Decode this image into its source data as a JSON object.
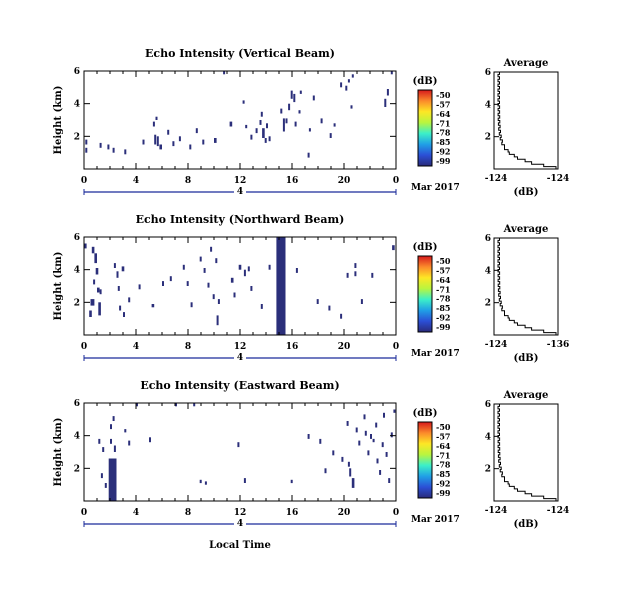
{
  "figure": {
    "xlabel_bottom": "Local Time",
    "date_label": "Mar 2017",
    "colorbar_unit": "(dB)",
    "colorbar_ticks": [
      "-50",
      "-57",
      "-64",
      "-71",
      "-78",
      "-85",
      "-92",
      "-99"
    ],
    "colorbar_colors": [
      "#d7191c",
      "#fb8a2b",
      "#fde725",
      "#b9f53f",
      "#3cf0c8",
      "#20a0e6",
      "#2b4fd6",
      "#2a2a7a"
    ]
  },
  "chart_data": [
    {
      "type": "heatmap",
      "title": "Echo Intensity (Vertical Beam)",
      "ylabel": "Height (km)",
      "xlim": [
        0,
        24
      ],
      "ylim": [
        0,
        6
      ],
      "x_ticks": [
        "0",
        "4",
        "8",
        "12",
        "16",
        "20",
        "0"
      ],
      "y_ticks": [
        "2",
        "4",
        "6"
      ],
      "day_marker": "4",
      "cell_color": "#2b2f7a",
      "cells": [
        [
          0.1,
          1.0,
          0.1,
          0.3
        ],
        [
          0.1,
          1.5,
          0.1,
          0.3
        ],
        [
          1.2,
          1.3,
          0.1,
          0.3
        ],
        [
          1.8,
          1.2,
          0.1,
          0.3
        ],
        [
          2.2,
          1.0,
          0.1,
          0.3
        ],
        [
          3.1,
          0.9,
          0.1,
          0.3
        ],
        [
          4.5,
          1.5,
          0.1,
          0.3
        ],
        [
          5.3,
          2.6,
          0.1,
          0.3
        ],
        [
          5.4,
          1.5,
          0.1,
          0.6
        ],
        [
          5.6,
          1.4,
          0.1,
          0.6
        ],
        [
          5.8,
          1.2,
          0.2,
          0.3
        ],
        [
          5.5,
          3.0,
          0.1,
          0.2
        ],
        [
          6.4,
          2.1,
          0.1,
          0.3
        ],
        [
          6.8,
          1.4,
          0.1,
          0.3
        ],
        [
          7.3,
          1.7,
          0.1,
          0.3
        ],
        [
          8.1,
          1.2,
          0.1,
          0.3
        ],
        [
          8.6,
          2.2,
          0.1,
          0.3
        ],
        [
          9.1,
          1.5,
          0.1,
          0.3
        ],
        [
          10.0,
          1.6,
          0.2,
          0.3
        ],
        [
          10.7,
          5.8,
          0.1,
          0.2
        ],
        [
          11.2,
          2.6,
          0.2,
          0.3
        ],
        [
          12.2,
          4.0,
          0.1,
          0.2
        ],
        [
          12.4,
          2.5,
          0.1,
          0.2
        ],
        [
          12.8,
          1.8,
          0.1,
          0.3
        ],
        [
          13.2,
          2.2,
          0.1,
          0.3
        ],
        [
          13.5,
          2.7,
          0.1,
          0.3
        ],
        [
          13.7,
          1.9,
          0.2,
          0.6
        ],
        [
          13.6,
          3.2,
          0.1,
          0.3
        ],
        [
          13.9,
          1.6,
          0.1,
          0.3
        ],
        [
          14.0,
          2.5,
          0.1,
          0.3
        ],
        [
          14.2,
          1.7,
          0.1,
          0.3
        ],
        [
          15.1,
          3.4,
          0.1,
          0.3
        ],
        [
          15.3,
          2.3,
          0.1,
          0.8
        ],
        [
          15.5,
          2.8,
          0.1,
          0.3
        ],
        [
          15.7,
          3.6,
          0.1,
          0.4
        ],
        [
          15.9,
          4.3,
          0.1,
          0.5
        ],
        [
          16.1,
          4.1,
          0.1,
          0.5
        ],
        [
          16.2,
          2.6,
          0.1,
          0.3
        ],
        [
          16.5,
          3.4,
          0.1,
          0.2
        ],
        [
          16.6,
          4.6,
          0.1,
          0.2
        ],
        [
          17.3,
          2.3,
          0.1,
          0.2
        ],
        [
          17.6,
          4.2,
          0.1,
          0.3
        ],
        [
          18.2,
          2.8,
          0.1,
          0.3
        ],
        [
          18.9,
          1.9,
          0.1,
          0.3
        ],
        [
          19.2,
          2.6,
          0.1,
          0.2
        ],
        [
          19.7,
          5.0,
          0.1,
          0.3
        ],
        [
          20.1,
          4.8,
          0.1,
          0.3
        ],
        [
          20.3,
          5.3,
          0.1,
          0.2
        ],
        [
          20.6,
          5.6,
          0.1,
          0.2
        ],
        [
          20.5,
          3.7,
          0.1,
          0.2
        ],
        [
          23.1,
          3.8,
          0.1,
          0.5
        ],
        [
          23.3,
          4.5,
          0.1,
          0.4
        ],
        [
          23.6,
          5.8,
          0.1,
          0.2
        ],
        [
          17.2,
          0.7,
          0.1,
          0.3
        ]
      ],
      "profile": {
        "title": "Average",
        "xlabel": "(dB)",
        "x_ticks": [
          "-124",
          "-124"
        ],
        "y_ticks": [
          "2",
          "4",
          "6"
        ]
      }
    },
    {
      "type": "heatmap",
      "title": "Echo Intensity (Northward Beam)",
      "ylabel": "Height (km)",
      "xlim": [
        0,
        24
      ],
      "ylim": [
        0,
        6
      ],
      "x_ticks": [
        "0",
        "4",
        "8",
        "12",
        "16",
        "20",
        "0"
      ],
      "y_ticks": [
        "2",
        "4",
        "6"
      ],
      "day_marker": "4",
      "cell_color": "#2b2f7a",
      "cells": [
        [
          0.0,
          5.3,
          0.2,
          0.3
        ],
        [
          0.6,
          5.0,
          0.2,
          0.4
        ],
        [
          0.8,
          4.4,
          0.2,
          0.6
        ],
        [
          0.9,
          3.7,
          0.2,
          0.4
        ],
        [
          0.7,
          3.1,
          0.1,
          0.3
        ],
        [
          1.0,
          2.6,
          0.2,
          0.3
        ],
        [
          0.5,
          1.8,
          0.3,
          0.4
        ],
        [
          0.4,
          1.1,
          0.2,
          0.4
        ],
        [
          1.1,
          1.2,
          0.2,
          0.8
        ],
        [
          1.2,
          2.5,
          0.1,
          0.3
        ],
        [
          2.3,
          4.1,
          0.1,
          0.3
        ],
        [
          2.5,
          3.5,
          0.1,
          0.4
        ],
        [
          2.6,
          2.7,
          0.1,
          0.3
        ],
        [
          2.9,
          3.9,
          0.2,
          0.3
        ],
        [
          2.7,
          1.5,
          0.1,
          0.3
        ],
        [
          3.0,
          1.1,
          0.1,
          0.3
        ],
        [
          3.4,
          2.0,
          0.1,
          0.3
        ],
        [
          4.2,
          2.8,
          0.1,
          0.3
        ],
        [
          5.2,
          1.7,
          0.2,
          0.2
        ],
        [
          6.0,
          3.0,
          0.1,
          0.3
        ],
        [
          6.6,
          3.3,
          0.1,
          0.3
        ],
        [
          7.6,
          4.0,
          0.1,
          0.3
        ],
        [
          7.9,
          3.0,
          0.1,
          0.3
        ],
        [
          8.2,
          1.7,
          0.1,
          0.3
        ],
        [
          8.9,
          4.5,
          0.1,
          0.3
        ],
        [
          9.2,
          3.8,
          0.1,
          0.3
        ],
        [
          9.5,
          2.9,
          0.1,
          0.3
        ],
        [
          9.7,
          5.1,
          0.1,
          0.3
        ],
        [
          9.9,
          2.2,
          0.1,
          0.3
        ],
        [
          10.1,
          4.4,
          0.1,
          0.3
        ],
        [
          10.3,
          1.9,
          0.1,
          0.3
        ],
        [
          10.2,
          0.6,
          0.1,
          0.6
        ],
        [
          11.3,
          3.2,
          0.2,
          0.3
        ],
        [
          11.5,
          2.3,
          0.1,
          0.3
        ],
        [
          11.9,
          4.0,
          0.2,
          0.3
        ],
        [
          12.3,
          3.6,
          0.1,
          0.4
        ],
        [
          12.6,
          3.9,
          0.1,
          0.3
        ],
        [
          12.8,
          2.7,
          0.1,
          0.3
        ],
        [
          13.6,
          1.6,
          0.1,
          0.3
        ],
        [
          14.2,
          4.0,
          0.1,
          0.3
        ],
        [
          15.0,
          3.0,
          0.1,
          0.3
        ],
        [
          14.8,
          0.0,
          0.7,
          6.0
        ],
        [
          16.3,
          3.8,
          0.1,
          0.3
        ],
        [
          17.9,
          1.9,
          0.1,
          0.3
        ],
        [
          18.8,
          1.5,
          0.1,
          0.3
        ],
        [
          19.7,
          1.0,
          0.1,
          0.3
        ],
        [
          20.2,
          3.5,
          0.1,
          0.3
        ],
        [
          20.8,
          3.6,
          0.1,
          0.3
        ],
        [
          21.3,
          1.9,
          0.1,
          0.3
        ],
        [
          20.8,
          4.1,
          0.1,
          0.3
        ],
        [
          22.1,
          3.5,
          0.1,
          0.3
        ],
        [
          23.7,
          5.2,
          0.2,
          0.3
        ]
      ],
      "profile": {
        "title": "Average",
        "xlabel": "(dB)",
        "x_ticks": [
          "-124",
          "-136"
        ],
        "y_ticks": [
          "2",
          "4",
          "6"
        ]
      }
    },
    {
      "type": "heatmap",
      "title": "Echo Intensity (Eastward Beam)",
      "ylabel": "Height (km)",
      "xlim": [
        0,
        24
      ],
      "ylim": [
        0,
        6
      ],
      "x_ticks": [
        "0",
        "4",
        "8",
        "12",
        "16",
        "20",
        "0"
      ],
      "y_ticks": [
        "2",
        "4",
        "6"
      ],
      "day_marker": "4",
      "cell_color": "#2b2f7a",
      "cells": [
        [
          1.1,
          3.5,
          0.1,
          0.3
        ],
        [
          1.4,
          3.0,
          0.1,
          0.3
        ],
        [
          1.3,
          1.4,
          0.1,
          0.3
        ],
        [
          1.6,
          0.8,
          0.1,
          0.3
        ],
        [
          2.0,
          4.4,
          0.1,
          0.3
        ],
        [
          2.2,
          4.9,
          0.1,
          0.3
        ],
        [
          1.9,
          0.0,
          0.6,
          2.6
        ],
        [
          2.1,
          2.3,
          0.1,
          0.3
        ],
        [
          2.3,
          3.0,
          0.1,
          0.4
        ],
        [
          2.0,
          3.5,
          0.1,
          0.3
        ],
        [
          3.1,
          4.2,
          0.1,
          0.2
        ],
        [
          3.4,
          3.4,
          0.1,
          0.3
        ],
        [
          4.0,
          5.8,
          0.1,
          0.2
        ],
        [
          5.0,
          3.6,
          0.1,
          0.3
        ],
        [
          7.0,
          5.8,
          0.1,
          0.2
        ],
        [
          8.4,
          5.8,
          0.1,
          0.2
        ],
        [
          8.9,
          1.1,
          0.1,
          0.2
        ],
        [
          9.3,
          1.0,
          0.1,
          0.2
        ],
        [
          11.8,
          3.3,
          0.1,
          0.3
        ],
        [
          12.3,
          1.1,
          0.1,
          0.3
        ],
        [
          15.9,
          1.1,
          0.1,
          0.2
        ],
        [
          17.2,
          3.8,
          0.1,
          0.3
        ],
        [
          18.1,
          3.5,
          0.1,
          0.3
        ],
        [
          18.5,
          1.7,
          0.1,
          0.3
        ],
        [
          19.1,
          2.8,
          0.1,
          0.3
        ],
        [
          19.8,
          2.4,
          0.1,
          0.3
        ],
        [
          20.2,
          4.6,
          0.1,
          0.3
        ],
        [
          20.3,
          2.1,
          0.1,
          0.3
        ],
        [
          20.4,
          1.5,
          0.1,
          0.5
        ],
        [
          20.6,
          0.8,
          0.2,
          0.6
        ],
        [
          20.9,
          4.2,
          0.1,
          0.3
        ],
        [
          21.1,
          3.4,
          0.1,
          0.3
        ],
        [
          21.5,
          5.0,
          0.1,
          0.3
        ],
        [
          21.6,
          4.0,
          0.1,
          0.3
        ],
        [
          21.8,
          2.8,
          0.1,
          0.3
        ],
        [
          22.0,
          3.8,
          0.1,
          0.3
        ],
        [
          22.2,
          3.6,
          0.1,
          0.2
        ],
        [
          22.4,
          4.5,
          0.1,
          0.3
        ],
        [
          22.5,
          2.3,
          0.1,
          0.3
        ],
        [
          22.7,
          1.6,
          0.1,
          0.3
        ],
        [
          22.9,
          3.3,
          0.1,
          0.3
        ],
        [
          23.0,
          5.1,
          0.1,
          0.3
        ],
        [
          23.2,
          2.7,
          0.1,
          0.3
        ],
        [
          23.4,
          1.1,
          0.1,
          0.3
        ],
        [
          23.6,
          3.9,
          0.1,
          0.3
        ],
        [
          23.8,
          5.4,
          0.1,
          0.2
        ]
      ],
      "profile": {
        "title": "Average",
        "xlabel": "(dB)",
        "x_ticks": [
          "-124",
          "-124"
        ],
        "y_ticks": [
          "2",
          "4",
          "6"
        ]
      }
    }
  ]
}
